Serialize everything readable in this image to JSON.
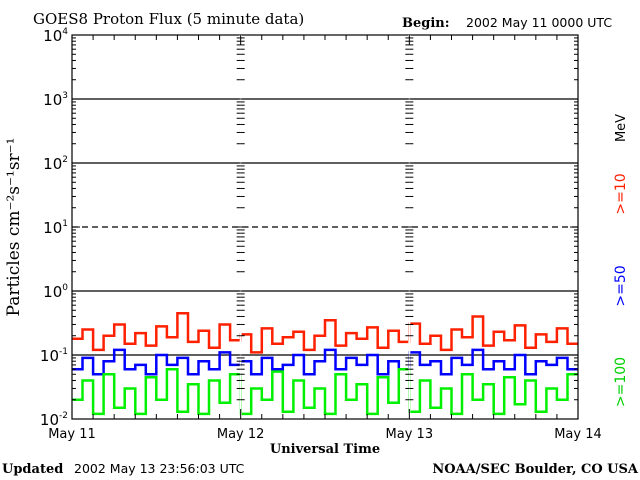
{
  "header": {
    "title": "GOES8 Proton Flux (5 minute data)",
    "begin_label": "Begin:",
    "begin_value": "2002 May 11 0000 UTC"
  },
  "footer": {
    "updated_label": "Updated",
    "updated_value": "2002 May 13 23:56:03 UTC",
    "credit": "NOAA/SEC Boulder, CO USA"
  },
  "chart_data": {
    "type": "line",
    "title": "GOES8 Proton Flux (5 minute data)",
    "xlabel": "Universal Time",
    "ylabel": "Particles cm⁻²s⁻¹sr⁻¹",
    "yscale": "log",
    "ylim": [
      0.01,
      10000
    ],
    "xlim_days": [
      0,
      3
    ],
    "x_tick_labels": [
      "May 11",
      "May 12",
      "May 13",
      "May 14"
    ],
    "y_tick_labels": [
      {
        "base": "10",
        "exp": "-2"
      },
      {
        "base": "10",
        "exp": "-1"
      },
      {
        "base": "10",
        "exp": "0"
      },
      {
        "base": "10",
        "exp": "1"
      },
      {
        "base": "10",
        "exp": "2"
      },
      {
        "base": "10",
        "exp": "3"
      },
      {
        "base": "10",
        "exp": "4"
      }
    ],
    "unit_label": "MeV",
    "series": [
      {
        "name": ">=10",
        "color": "#ff2000",
        "values": [
          0.18,
          0.25,
          0.12,
          0.2,
          0.3,
          0.15,
          0.22,
          0.14,
          0.28,
          0.19,
          0.45,
          0.16,
          0.24,
          0.13,
          0.3,
          0.17,
          0.21,
          0.11,
          0.26,
          0.15,
          0.19,
          0.23,
          0.12,
          0.2,
          0.35,
          0.14,
          0.22,
          0.18,
          0.27,
          0.13,
          0.24,
          0.16,
          0.31,
          0.15,
          0.2,
          0.12,
          0.25,
          0.19,
          0.4,
          0.14,
          0.23,
          0.17,
          0.29,
          0.13,
          0.21,
          0.16,
          0.26,
          0.15
        ]
      },
      {
        "name": ">=50",
        "color": "#0000ff",
        "values": [
          0.06,
          0.09,
          0.05,
          0.08,
          0.12,
          0.06,
          0.07,
          0.05,
          0.1,
          0.07,
          0.09,
          0.05,
          0.08,
          0.06,
          0.11,
          0.07,
          0.08,
          0.05,
          0.09,
          0.06,
          0.07,
          0.1,
          0.05,
          0.08,
          0.12,
          0.06,
          0.09,
          0.07,
          0.1,
          0.05,
          0.08,
          0.06,
          0.11,
          0.07,
          0.08,
          0.05,
          0.09,
          0.07,
          0.12,
          0.06,
          0.08,
          0.06,
          0.1,
          0.05,
          0.08,
          0.07,
          0.09,
          0.06
        ]
      },
      {
        "name": ">=100",
        "color": "#00f000",
        "values": [
          0.02,
          0.04,
          0.012,
          0.05,
          0.015,
          0.03,
          0.012,
          0.045,
          0.02,
          0.06,
          0.013,
          0.035,
          0.012,
          0.04,
          0.018,
          0.05,
          0.012,
          0.03,
          0.02,
          0.055,
          0.013,
          0.04,
          0.015,
          0.03,
          0.012,
          0.05,
          0.02,
          0.035,
          0.012,
          0.045,
          0.018,
          0.06,
          0.013,
          0.04,
          0.015,
          0.03,
          0.012,
          0.05,
          0.02,
          0.035,
          0.012,
          0.045,
          0.017,
          0.04,
          0.013,
          0.03,
          0.02,
          0.05
        ]
      }
    ]
  }
}
